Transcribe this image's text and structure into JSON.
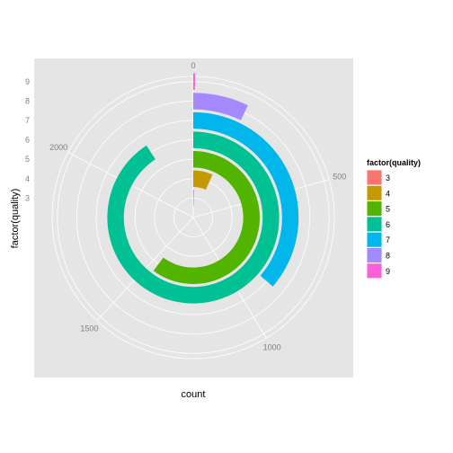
{
  "chart_data": {
    "type": "bar",
    "coord": "polar",
    "theta_variable": "count",
    "xlabel": "count",
    "ylabel": "factor(quality)",
    "categories": [
      "3",
      "4",
      "5",
      "6",
      "7",
      "8",
      "9"
    ],
    "values": [
      10,
      163,
      1457,
      2198,
      880,
      175,
      5
    ],
    "theta_range": [
      0,
      2420
    ],
    "theta_ticks": [
      "0",
      "500",
      "1000",
      "1500",
      "2000"
    ],
    "theta_tick_values": [
      0,
      500,
      1000,
      1500,
      2000
    ],
    "grid": true,
    "legend": {
      "title": "factor(quality)",
      "position": "right",
      "entries": [
        "3",
        "4",
        "5",
        "6",
        "7",
        "8",
        "9"
      ]
    },
    "colors": [
      "#F8766D",
      "#C49A00",
      "#53B400",
      "#00C094",
      "#00B6EB",
      "#A58AFF",
      "#FB61D7"
    ],
    "panel_background": "#E5E5E5",
    "grid_color": "#FFFFFF"
  }
}
